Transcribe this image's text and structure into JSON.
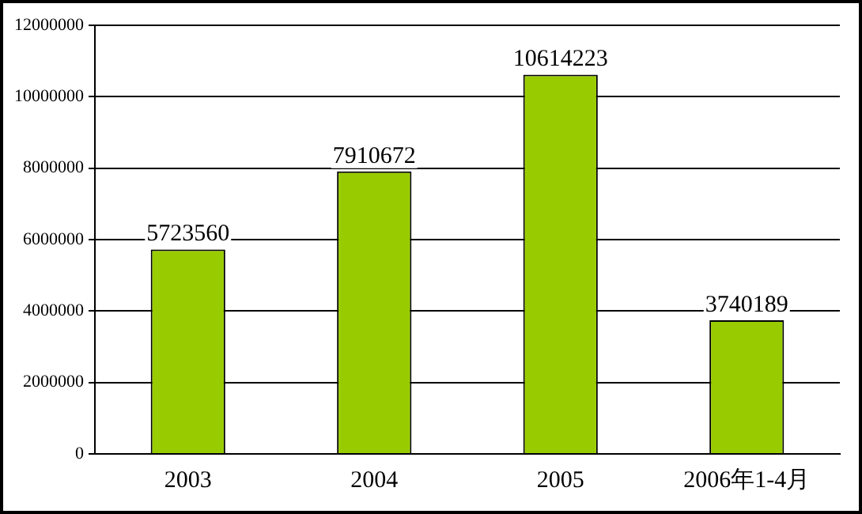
{
  "chart_data": {
    "type": "bar",
    "categories": [
      "2003",
      "2004",
      "2005",
      "2006年1-4月"
    ],
    "values": [
      5723560,
      7910672,
      10614223,
      3740189
    ],
    "color": "#99cc00",
    "ylim": [
      0,
      12000000
    ],
    "yticks": [
      0,
      2000000,
      4000000,
      6000000,
      8000000,
      10000000,
      12000000
    ],
    "grid": "y",
    "data_labels": true,
    "legend": false
  }
}
